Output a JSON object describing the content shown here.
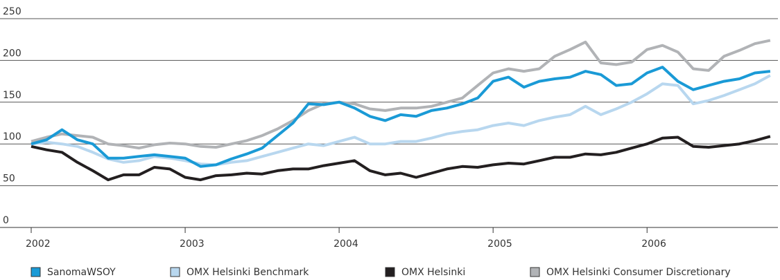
{
  "chart_data": {
    "type": "line",
    "x": [
      2002.0,
      2002.1,
      2002.2,
      2002.3,
      2002.4,
      2002.5,
      2002.6,
      2002.7,
      2002.8,
      2002.9,
      2003.0,
      2003.1,
      2003.2,
      2003.3,
      2003.4,
      2003.5,
      2003.6,
      2003.7,
      2003.8,
      2003.9,
      2004.0,
      2004.1,
      2004.2,
      2004.3,
      2004.4,
      2004.5,
      2004.6,
      2004.7,
      2004.8,
      2004.9,
      2005.0,
      2005.1,
      2005.2,
      2005.3,
      2005.4,
      2005.5,
      2005.6,
      2005.7,
      2005.8,
      2005.9,
      2006.0,
      2006.1,
      2006.2,
      2006.3,
      2006.4,
      2006.5,
      2006.6,
      2006.7,
      2006.8
    ],
    "series": [
      {
        "name": "SanomaWSOY",
        "color": "#1a9ad6",
        "values": [
          100,
          105,
          117,
          105,
          100,
          83,
          83,
          85,
          87,
          85,
          83,
          73,
          75,
          82,
          88,
          95,
          110,
          125,
          148,
          147,
          150,
          143,
          133,
          128,
          135,
          133,
          140,
          143,
          148,
          155,
          175,
          180,
          168,
          175,
          178,
          180,
          187,
          183,
          170,
          172,
          185,
          192,
          175,
          165,
          170,
          175,
          178,
          185,
          187
        ]
      },
      {
        "name": "OMX Helsinki Benchmark",
        "color": "#b8d7ef",
        "values": [
          100,
          102,
          100,
          97,
          90,
          82,
          78,
          80,
          85,
          83,
          80,
          76,
          75,
          78,
          80,
          85,
          90,
          95,
          100,
          98,
          103,
          108,
          100,
          100,
          103,
          103,
          107,
          112,
          115,
          117,
          122,
          125,
          122,
          128,
          132,
          135,
          145,
          135,
          142,
          150,
          160,
          172,
          170,
          148,
          152,
          158,
          165,
          172,
          182
        ]
      },
      {
        "name": "OMX Helsinki",
        "color": "#231f20",
        "values": [
          97,
          93,
          90,
          78,
          68,
          57,
          63,
          63,
          72,
          70,
          60,
          57,
          62,
          63,
          65,
          64,
          68,
          70,
          70,
          74,
          77,
          80,
          68,
          63,
          65,
          60,
          65,
          70,
          73,
          72,
          75,
          77,
          76,
          80,
          84,
          84,
          88,
          87,
          90,
          95,
          100,
          107,
          108,
          97,
          96,
          98,
          100,
          104,
          109
        ]
      },
      {
        "name": "OMX Helsinki Consumer Discretionary",
        "color": "#b1b3b6",
        "values": [
          103,
          108,
          112,
          110,
          108,
          100,
          98,
          95,
          99,
          101,
          100,
          97,
          96,
          100,
          104,
          110,
          118,
          128,
          140,
          148,
          150,
          148,
          142,
          140,
          143,
          143,
          145,
          150,
          155,
          170,
          185,
          190,
          187,
          190,
          205,
          213,
          222,
          197,
          195,
          198,
          213,
          218,
          210,
          190,
          188,
          205,
          212,
          220,
          224
        ]
      }
    ],
    "xlim": [
      2002,
      2006.85
    ],
    "xticks": [
      2002,
      2003,
      2004,
      2005,
      2006
    ],
    "ylim": [
      0,
      250
    ],
    "yticks": [
      0,
      50,
      100,
      150,
      200,
      250
    ],
    "grid": true,
    "legend": "bottom"
  }
}
